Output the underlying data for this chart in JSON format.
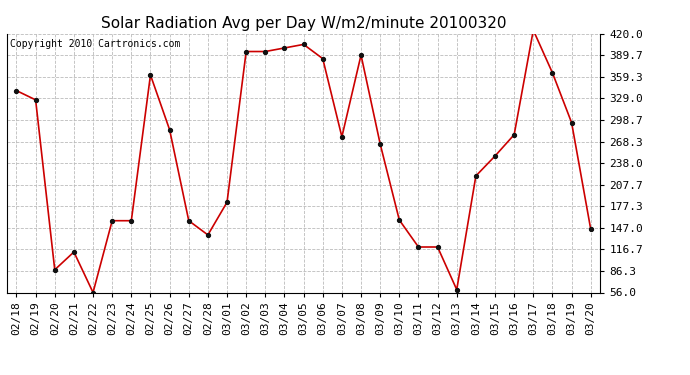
{
  "title": "Solar Radiation Avg per Day W/m2/minute 20100320",
  "copyright": "Copyright 2010 Cartronics.com",
  "x_labels": [
    "02/18",
    "02/19",
    "02/20",
    "02/21",
    "02/22",
    "02/23",
    "02/24",
    "02/25",
    "02/26",
    "02/27",
    "02/28",
    "03/01",
    "03/02",
    "03/03",
    "03/04",
    "03/05",
    "03/06",
    "03/07",
    "03/08",
    "03/09",
    "03/10",
    "03/11",
    "03/12",
    "03/13",
    "03/14",
    "03/15",
    "03/16",
    "03/17",
    "03/18",
    "03/19",
    "03/20"
  ],
  "y_values": [
    340,
    327,
    88,
    113,
    56,
    157,
    157,
    362,
    285,
    157,
    137,
    183,
    395,
    395,
    400,
    405,
    385,
    275,
    390,
    265,
    158,
    120,
    120,
    60,
    220,
    248,
    278,
    425,
    365,
    295,
    145
  ],
  "yticks": [
    56.0,
    86.3,
    116.7,
    147.0,
    177.3,
    207.7,
    238.0,
    268.3,
    298.7,
    329.0,
    359.3,
    389.7,
    420.0
  ],
  "ytick_labels": [
    "56.0",
    "86.3",
    "116.7",
    "147.0",
    "177.3",
    "207.7",
    "238.0",
    "268.3",
    "298.7",
    "329.0",
    "359.3",
    "389.7",
    "420.0"
  ],
  "line_color": "#cc0000",
  "marker": "o",
  "marker_size": 3,
  "background_color": "#ffffff",
  "plot_bg_color": "#ffffff",
  "grid_color": "#bbbbbb",
  "title_fontsize": 11,
  "tick_fontsize": 8,
  "copyright_fontsize": 7,
  "ylim": [
    56.0,
    420.0
  ]
}
